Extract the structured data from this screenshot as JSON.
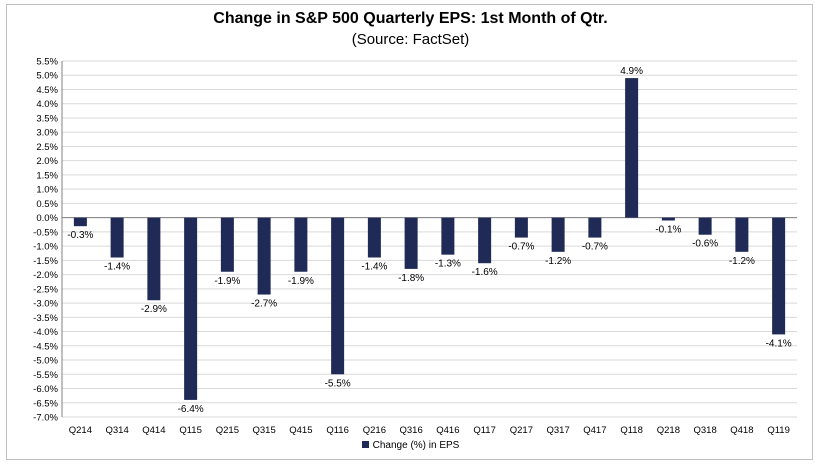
{
  "chart_data": {
    "type": "bar",
    "title": "Change in S&P 500 Quarterly EPS: 1st Month of Qtr.",
    "subtitle": "(Source: FactSet)",
    "xlabel": "",
    "ylabel": "",
    "ylim": [
      -7.0,
      5.5
    ],
    "ytick_step": 0.5,
    "grid": true,
    "legend_position": "bottom-center",
    "categories": [
      "Q214",
      "Q314",
      "Q414",
      "Q115",
      "Q215",
      "Q315",
      "Q415",
      "Q116",
      "Q216",
      "Q316",
      "Q416",
      "Q117",
      "Q217",
      "Q317",
      "Q417",
      "Q118",
      "Q218",
      "Q318",
      "Q418",
      "Q119"
    ],
    "series": [
      {
        "name": "Change (%) in EPS",
        "color": "#1f2a56",
        "values": [
          -0.3,
          -1.4,
          -2.9,
          -6.4,
          -1.9,
          -2.7,
          -1.9,
          -5.5,
          -1.4,
          -1.8,
          -1.3,
          -1.6,
          -0.7,
          -1.2,
          -0.7,
          4.9,
          -0.1,
          -0.6,
          -1.2,
          -4.1
        ],
        "labels": [
          "-0.3%",
          "-1.4%",
          "-2.9%",
          "-6.4%",
          "-1.9%",
          "-2.7%",
          "-1.9%",
          "-5.5%",
          "-1.4%",
          "-1.8%",
          "-1.3%",
          "-1.6%",
          "-0.7%",
          "-1.2%",
          "-0.7%",
          "4.9%",
          "-0.1%",
          "-0.6%",
          "-1.2%",
          "-4.1%"
        ]
      }
    ]
  },
  "colors": {
    "bar": "#1f2a56",
    "grid": "#d9d9d9",
    "axis": "#808080"
  }
}
